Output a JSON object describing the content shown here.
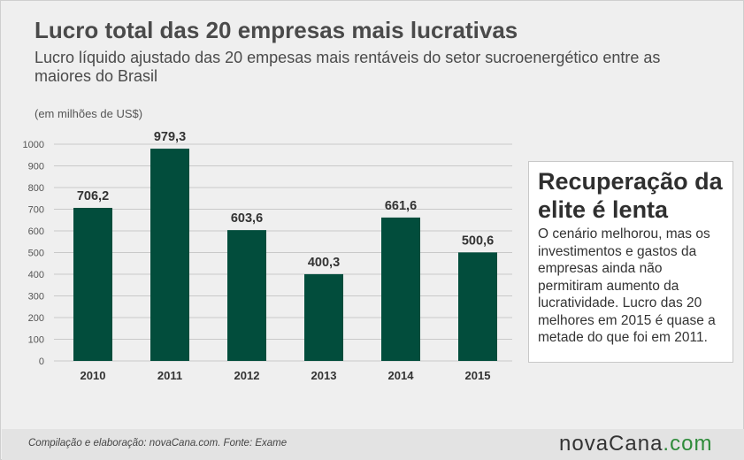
{
  "title": "Lucro total das 20 empresas mais lucrativas",
  "subtitle": "Lucro líquido ajustado das 20 empesas mais rentáveis do setor sucroenergético entre  as maiores do Brasil",
  "unit_label": "(em milhões de US$)",
  "chart_data": {
    "type": "bar",
    "categories": [
      "2010",
      "2011",
      "2012",
      "2013",
      "2014",
      "2015"
    ],
    "values": [
      706.2,
      979.3,
      603.6,
      400.3,
      661.6,
      500.6
    ],
    "value_labels": [
      "706,2",
      "979,3",
      "603,6",
      "400,3",
      "661,6",
      "500,6"
    ],
    "yticks": [
      "0",
      "100",
      "200",
      "300",
      "400",
      "500",
      "600",
      "700",
      "800",
      "900",
      "1000"
    ],
    "ylim": [
      0,
      1000
    ],
    "grid": true,
    "bar_color": "#024d3c"
  },
  "callout": {
    "title": "Recuperação da elite é lenta",
    "text": "O cenário melhorou, mas os investimentos e gastos da empresas ainda não permitiram aumento da lucratividade. Lucro das 20 melhores em 2015 é quase a metade do que foi em 2011."
  },
  "footer": {
    "source": "Compilação e elaboração: novaCana.com. Fonte: Exame",
    "logo_part1": "novaCana",
    "logo_part2": ".com"
  }
}
